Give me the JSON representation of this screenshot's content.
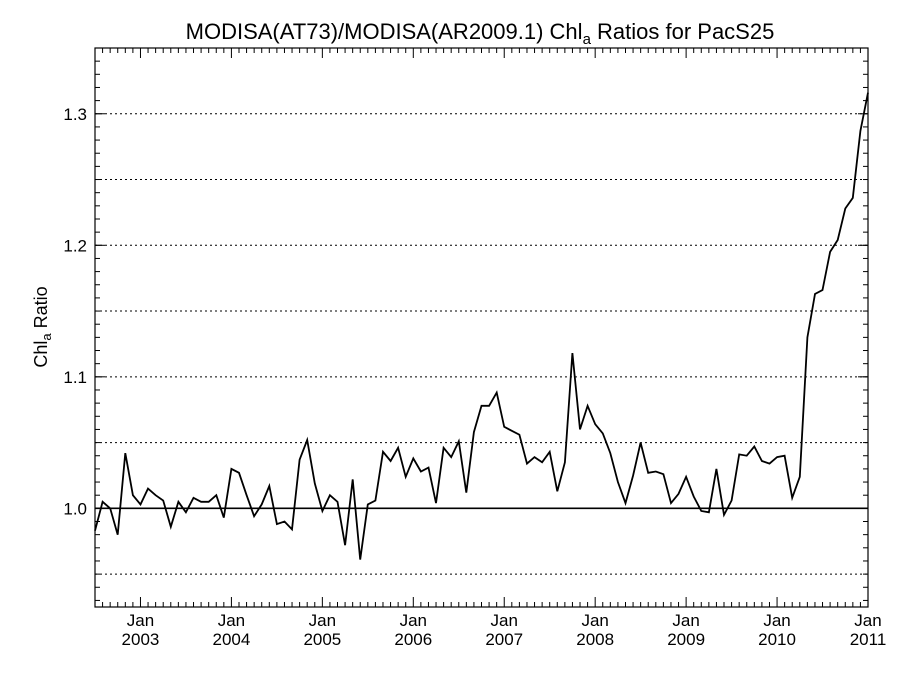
{
  "chart_data": {
    "type": "line",
    "title": {
      "prefix": "MODISA(AT73)/MODISA(AR2009.1)  Chl",
      "subscript": "a",
      "suffix": " Ratios for PacS25"
    },
    "ylabel": {
      "main": "Chl",
      "subscript": "a",
      "rest": " Ratio"
    },
    "ylim": [
      0.925,
      1.35
    ],
    "yticks": [
      {
        "value": 1.0,
        "label": "1.0"
      },
      {
        "value": 1.1,
        "label": "1.1"
      },
      {
        "value": 1.2,
        "label": "1.2"
      },
      {
        "value": 1.3,
        "label": "1.3"
      }
    ],
    "dotted_gridlines": [
      0.95,
      1.05,
      1.1,
      1.15,
      1.2,
      1.25,
      1.3
    ],
    "reference_line": 1.0,
    "xlim": [
      "2002-07",
      "2011-01"
    ],
    "xticks": [
      {
        "date": "2003-01",
        "month": "Jan",
        "year": "2003"
      },
      {
        "date": "2004-01",
        "month": "Jan",
        "year": "2004"
      },
      {
        "date": "2005-01",
        "month": "Jan",
        "year": "2005"
      },
      {
        "date": "2006-01",
        "month": "Jan",
        "year": "2006"
      },
      {
        "date": "2007-01",
        "month": "Jan",
        "year": "2007"
      },
      {
        "date": "2008-01",
        "month": "Jan",
        "year": "2008"
      },
      {
        "date": "2009-01",
        "month": "Jan",
        "year": "2009"
      },
      {
        "date": "2010-01",
        "month": "Jan",
        "year": "2010"
      },
      {
        "date": "2011-01",
        "month": "Jan",
        "year": "2011"
      }
    ],
    "grid": "horizontal dotted",
    "series": [
      {
        "x": [
          "2002-07",
          "2002-08",
          "2002-09",
          "2002-10",
          "2002-11",
          "2002-12",
          "2003-01",
          "2003-02",
          "2003-03",
          "2003-04",
          "2003-05",
          "2003-06",
          "2003-07",
          "2003-08",
          "2003-09",
          "2003-10",
          "2003-11",
          "2003-12",
          "2004-01",
          "2004-02",
          "2004-03",
          "2004-04",
          "2004-05",
          "2004-06",
          "2004-07",
          "2004-08",
          "2004-09",
          "2004-10",
          "2004-11",
          "2004-12",
          "2005-01",
          "2005-02",
          "2005-03",
          "2005-04",
          "2005-05",
          "2005-06",
          "2005-07",
          "2005-08",
          "2005-09",
          "2005-10",
          "2005-11",
          "2005-12",
          "2006-01",
          "2006-02",
          "2006-03",
          "2006-04",
          "2006-05",
          "2006-06",
          "2006-07",
          "2006-08",
          "2006-09",
          "2006-10",
          "2006-11",
          "2006-12",
          "2007-01",
          "2007-02",
          "2007-03",
          "2007-04",
          "2007-05",
          "2007-06",
          "2007-07",
          "2007-08",
          "2007-09",
          "2007-10",
          "2007-11",
          "2007-12",
          "2008-01",
          "2008-02",
          "2008-03",
          "2008-04",
          "2008-05",
          "2008-06",
          "2008-07",
          "2008-08",
          "2008-09",
          "2008-10",
          "2008-11",
          "2008-12",
          "2009-01",
          "2009-02",
          "2009-03",
          "2009-04",
          "2009-05",
          "2009-06",
          "2009-07",
          "2009-08",
          "2009-09",
          "2009-10",
          "2009-11",
          "2009-12",
          "2010-01",
          "2010-02",
          "2010-03",
          "2010-04",
          "2010-05",
          "2010-06",
          "2010-07",
          "2010-08",
          "2010-09",
          "2010-10",
          "2010-11",
          "2010-12",
          "2011-01"
        ],
        "values": [
          0.983,
          1.005,
          1.0,
          0.98,
          1.042,
          1.01,
          1.003,
          1.015,
          1.01,
          1.006,
          0.986,
          1.005,
          0.997,
          1.008,
          1.005,
          1.005,
          1.01,
          0.993,
          1.03,
          1.027,
          1.01,
          0.994,
          1.003,
          1.017,
          0.988,
          0.99,
          0.984,
          1.037,
          1.052,
          1.019,
          0.998,
          1.01,
          1.005,
          0.972,
          1.022,
          0.961,
          1.003,
          1.006,
          1.043,
          1.036,
          1.046,
          1.024,
          1.038,
          1.028,
          1.031,
          1.004,
          1.046,
          1.039,
          1.051,
          1.012,
          1.058,
          1.078,
          1.078,
          1.088,
          1.062,
          1.059,
          1.056,
          1.034,
          1.039,
          1.035,
          1.043,
          1.013,
          1.035,
          1.118,
          1.06,
          1.078,
          1.064,
          1.057,
          1.042,
          1.02,
          1.004,
          1.025,
          1.05,
          1.027,
          1.028,
          1.026,
          1.004,
          1.011,
          1.024,
          1.009,
          0.998,
          0.997,
          1.03,
          0.995,
          1.006,
          1.041,
          1.04,
          1.047,
          1.036,
          1.034,
          1.039,
          1.04,
          1.008,
          1.024,
          1.13,
          1.163,
          1.166,
          1.195,
          1.204,
          1.228,
          1.236,
          1.287,
          1.316
        ]
      }
    ]
  }
}
